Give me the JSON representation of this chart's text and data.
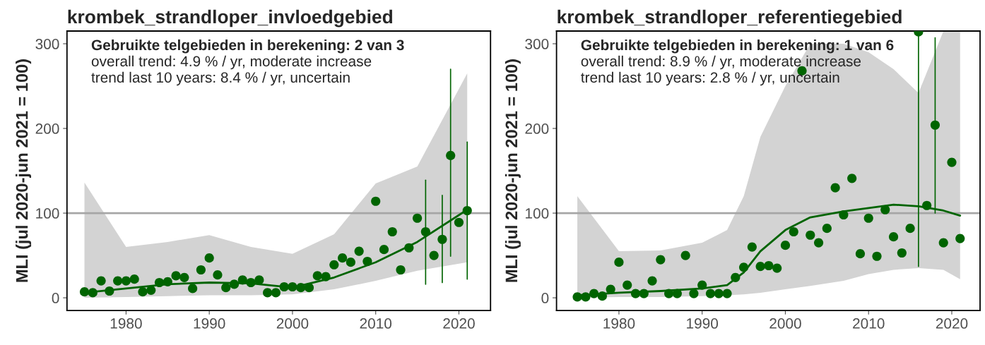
{
  "chart_data": [
    {
      "type": "scatter",
      "title": "krombek_strandloper_invloedgebied",
      "ylabel": "MLI (jul 2020-jun 2021 = 100)",
      "annotations": [
        "Gebruikte telgebieden in berekening: 2 van 3",
        "overall trend: 4.9 % / yr, moderate increase",
        "trend last 10 years: 8.4 % / yr, uncertain"
      ],
      "xlim": [
        1972.9,
        2023.8
      ],
      "ylim": [
        -15,
        315
      ],
      "xticks": [
        1980,
        1990,
        2000,
        2010,
        2020
      ],
      "yticks": [
        0,
        100,
        200,
        300
      ],
      "grid": false,
      "ref_lines": [
        {
          "axis": "y",
          "value": 100,
          "color": "#a6a6a6"
        }
      ],
      "series": [
        {
          "type": "line",
          "color": "#006400",
          "x": [
            1975,
            1980,
            1985,
            1990,
            1995,
            2000,
            2005,
            2010,
            2015,
            2021
          ],
          "values": [
            6,
            11,
            16,
            18,
            17,
            12,
            24,
            42,
            66,
            104
          ],
          "lower": [
            0,
            1,
            2,
            3,
            3,
            4,
            10,
            20,
            32,
            42
          ],
          "upper": [
            136,
            60,
            66,
            74,
            60,
            52,
            75,
            135,
            155,
            265
          ]
        },
        {
          "color": "#006400",
          "marker": "circle",
          "x": [
            1975,
            1976,
            1977,
            1978,
            1979,
            1980,
            1981,
            1982,
            1983,
            1984,
            1985,
            1986,
            1987,
            1988,
            1989,
            1990,
            1991,
            1992,
            1993,
            1994,
            1995,
            1996,
            1997,
            1998,
            1999,
            2000,
            2001,
            2002,
            2003,
            2004,
            2005,
            2006,
            2007,
            2008,
            2009,
            2010,
            2011,
            2012,
            2013,
            2014,
            2015,
            2016,
            2017,
            2018,
            2019,
            2020,
            2021
          ],
          "values": [
            7,
            6,
            20,
            8,
            20,
            20,
            22,
            7,
            9,
            18,
            19,
            26,
            24,
            11,
            33,
            47,
            27,
            12,
            16,
            21,
            18,
            21,
            6,
            6,
            13,
            13,
            12,
            12,
            26,
            25,
            39,
            47,
            42,
            55,
            43,
            114,
            57,
            78,
            33,
            59,
            94,
            78,
            50,
            69,
            168,
            89,
            103
          ],
          "errors": [
            null,
            null,
            null,
            null,
            null,
            null,
            null,
            null,
            null,
            null,
            null,
            null,
            null,
            null,
            null,
            null,
            null,
            null,
            null,
            null,
            null,
            null,
            null,
            null,
            null,
            null,
            null,
            null,
            null,
            null,
            null,
            null,
            null,
            null,
            null,
            null,
            null,
            null,
            null,
            null,
            null,
            [
              16,
              139
            ],
            null,
            [
              18,
              121
            ],
            [
              49,
              270
            ],
            null,
            [
              22,
              184
            ]
          ]
        }
      ]
    },
    {
      "type": "scatter",
      "title": "krombek_strandloper_referentiegebied",
      "ylabel": "MLI (jul 2020-jun 2021 = 100)",
      "annotations": [
        "Gebruikte telgebieden in berekening: 1 van 6",
        "overall trend: 8.9 % / yr, moderate increase",
        "trend last 10 years: 2.8 % / yr, uncertain"
      ],
      "xlim": [
        1972.5,
        2023.4
      ],
      "ylim": [
        -15,
        315
      ],
      "xticks": [
        1980,
        1990,
        2000,
        2010,
        2020
      ],
      "yticks": [
        0,
        100,
        200,
        300
      ],
      "grid": false,
      "ref_lines": [
        {
          "axis": "y",
          "value": 100,
          "color": "#a6a6a6"
        }
      ],
      "series": [
        {
          "type": "line",
          "color": "#006400",
          "x": [
            1975,
            1980,
            1985,
            1990,
            1993,
            1995,
            1997,
            2000,
            2003,
            2007,
            2010,
            2013,
            2016,
            2019,
            2021
          ],
          "values": [
            3,
            6,
            8,
            11,
            15,
            30,
            55,
            80,
            95,
            102,
            106,
            110,
            108,
            103,
            97
          ],
          "lower": [
            0,
            1,
            1,
            2,
            3,
            4,
            6,
            10,
            14,
            20,
            28,
            33,
            35,
            33,
            22
          ],
          "upper": [
            120,
            55,
            56,
            65,
            80,
            120,
            190,
            250,
            300,
            300,
            290,
            270,
            242,
            315,
            315
          ]
        },
        {
          "color": "#006400",
          "marker": "circle",
          "x": [
            1975,
            1976,
            1977,
            1978,
            1979,
            1980,
            1981,
            1982,
            1983,
            1984,
            1985,
            1986,
            1987,
            1988,
            1989,
            1990,
            1991,
            1992,
            1993,
            1994,
            1995,
            1996,
            1997,
            1998,
            1999,
            2000,
            2001,
            2002,
            2003,
            2004,
            2005,
            2006,
            2007,
            2008,
            2009,
            2010,
            2011,
            2012,
            2013,
            2014,
            2015,
            2016,
            2017,
            2018,
            2019,
            2020,
            2021
          ],
          "values": [
            1,
            1,
            5,
            2,
            10,
            42,
            15,
            5,
            5,
            20,
            45,
            5,
            5,
            50,
            5,
            15,
            5,
            5,
            5,
            24,
            36,
            60,
            37,
            38,
            35,
            62,
            78,
            268,
            74,
            65,
            82,
            130,
            98,
            141,
            52,
            94,
            49,
            104,
            72,
            53,
            82,
            314,
            109,
            204,
            65,
            160,
            70
          ],
          "errors": [
            null,
            null,
            null,
            null,
            null,
            null,
            null,
            null,
            null,
            null,
            null,
            null,
            null,
            null,
            null,
            null,
            null,
            null,
            null,
            null,
            null,
            null,
            null,
            null,
            null,
            null,
            null,
            null,
            null,
            null,
            null,
            null,
            null,
            null,
            null,
            null,
            null,
            null,
            null,
            null,
            null,
            [
              37,
              315
            ],
            null,
            [
              100,
              307
            ],
            null,
            null,
            null
          ]
        }
      ]
    }
  ]
}
